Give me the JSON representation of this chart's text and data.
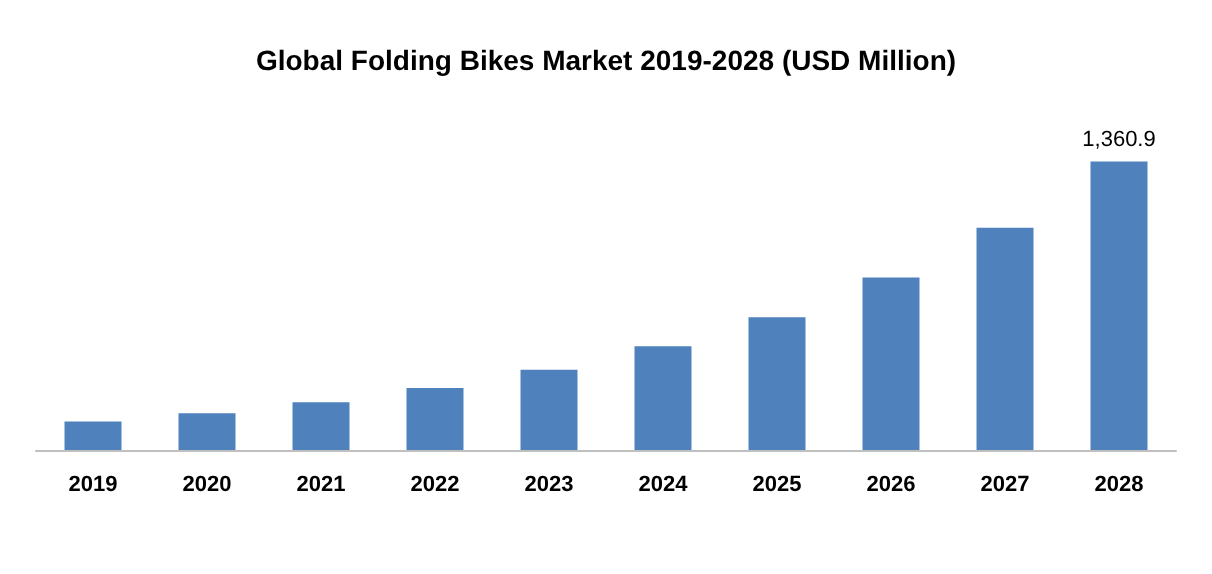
{
  "chart_data": {
    "type": "bar",
    "title": "Global Folding Bikes Market 2019-2028 (USD Million)",
    "categories": [
      "2019",
      "2020",
      "2021",
      "2022",
      "2023",
      "2024",
      "2025",
      "2026",
      "2027",
      "2028"
    ],
    "values": [
      135,
      173,
      225,
      293,
      378,
      489,
      626,
      814,
      1048,
      1360.9
    ],
    "value_labels": [
      null,
      null,
      null,
      null,
      null,
      null,
      null,
      null,
      null,
      "1,360.9"
    ],
    "color": "#4f81bd",
    "tick_labels": "x"
  }
}
